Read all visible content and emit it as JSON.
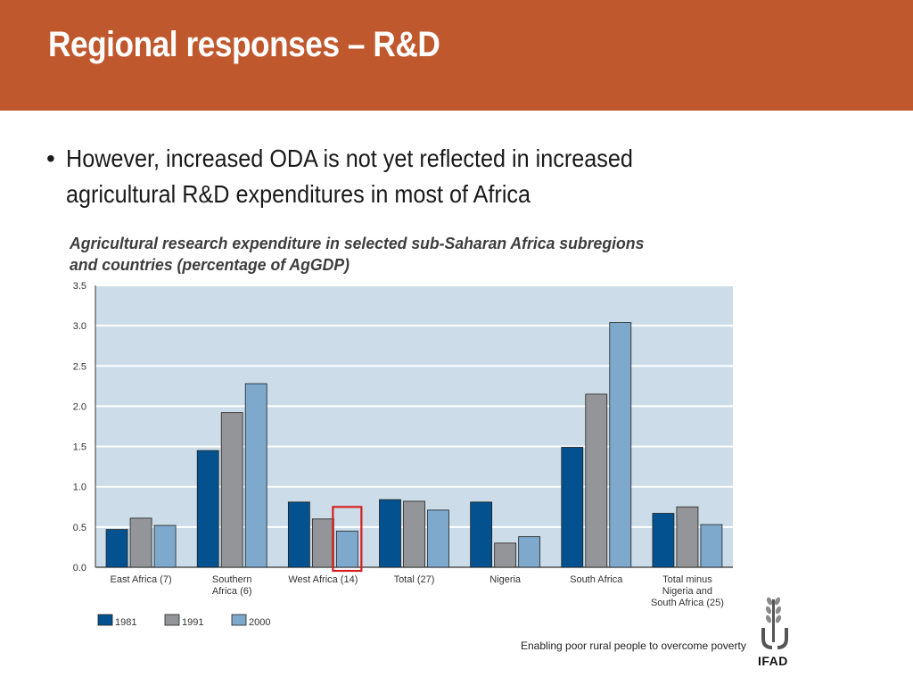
{
  "slide": {
    "title": "Regional responses – R&D",
    "bullet_lines": [
      "However, increased ODA is not yet reflected in increased",
      "agricultural R&D expenditures in most of Africa"
    ],
    "bullet_marker": "•",
    "footer_tagline": "Enabling poor rural people to overcome poverty",
    "logo_text": "IFAD",
    "header_color": "#c0582e"
  },
  "chart_data": {
    "type": "bar",
    "title_lines": [
      "Agricultural research expenditure in selected sub-Saharan Africa subregions",
      "and countries (percentage of AgGDP)"
    ],
    "categories": [
      [
        "East Africa (7)"
      ],
      [
        "Southern",
        "Africa (6)"
      ],
      [
        "West Africa (14)"
      ],
      [
        "Total (27)"
      ],
      [
        "Nigeria"
      ],
      [
        "South Africa"
      ],
      [
        "Total minus",
        "Nigeria and",
        "South Africa (25)"
      ]
    ],
    "series": [
      {
        "name": "1981",
        "color": "#03528f",
        "values": [
          0.47,
          1.45,
          0.81,
          0.84,
          0.81,
          1.49,
          0.67
        ]
      },
      {
        "name": "1991",
        "color": "#939598",
        "values": [
          0.61,
          1.92,
          0.6,
          0.82,
          0.3,
          2.15,
          0.75
        ]
      },
      {
        "name": "2000",
        "color": "#7ea8cc",
        "values": [
          0.52,
          2.28,
          0.45,
          0.71,
          0.38,
          3.04,
          0.53
        ]
      }
    ],
    "ylim": [
      0,
      3.5
    ],
    "yticks": [
      "0.0",
      "0.5",
      "1.0",
      "1.5",
      "2.0",
      "2.5",
      "3.0",
      "3.5"
    ],
    "grid": true,
    "plot_background": "#ccdde9",
    "legend_position": "bottom-left",
    "highlight": {
      "category_index": 2,
      "series_index": 2,
      "color": "#d42020"
    }
  }
}
